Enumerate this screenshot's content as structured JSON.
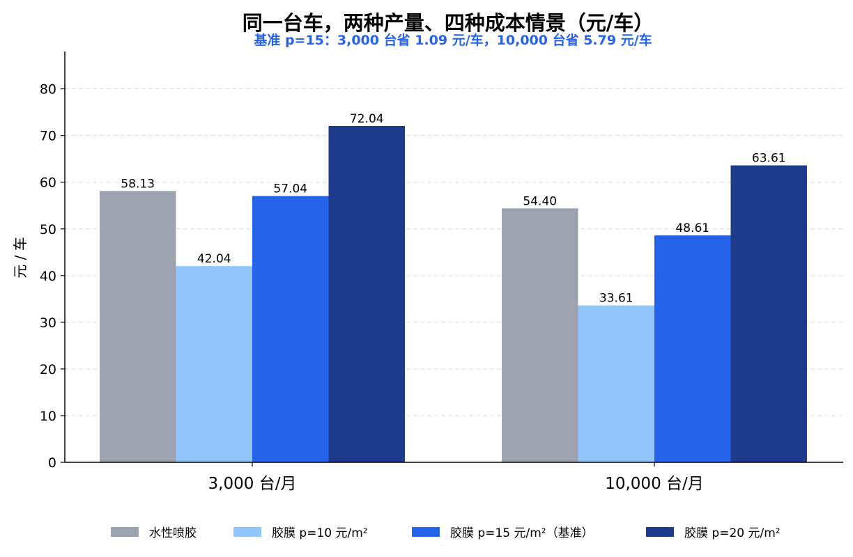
{
  "chart_data": {
    "type": "bar",
    "title": "同一台车，两种产量、四种成本情景（元/车）",
    "subtitle": "基准 p=15：3,000 台省 1.09 元/车，10,000 台省 5.79 元/车",
    "ylabel": "元 / 车",
    "xlabel": "",
    "categories": [
      "3,000 台/月",
      "10,000 台/月"
    ],
    "ylim": [
      0,
      88
    ],
    "yticks": [
      0,
      10,
      20,
      30,
      40,
      50,
      60,
      70,
      80
    ],
    "grid": "horizontal dashed",
    "legend_position": "bottom",
    "series": [
      {
        "name": "水性喷胶",
        "values": [
          58.13,
          54.4
        ],
        "labels": [
          "58.13",
          "54.40"
        ],
        "color": "#9ca3af"
      },
      {
        "name": "胶膜 p=10 元/m²",
        "values": [
          42.04,
          33.61
        ],
        "labels": [
          "42.04",
          "33.61"
        ],
        "color": "#93c5fd"
      },
      {
        "name": "胶膜 p=15 元/m²（基准）",
        "values": [
          57.04,
          48.61
        ],
        "labels": [
          "57.04",
          "48.61"
        ],
        "color": "#2563eb"
      },
      {
        "name": "胶膜 p=20 元/m²",
        "values": [
          72.04,
          63.61
        ],
        "labels": [
          "72.04",
          "63.61"
        ],
        "color": "#1e3a8a"
      }
    ],
    "subtitle_color": "#2563eb"
  }
}
